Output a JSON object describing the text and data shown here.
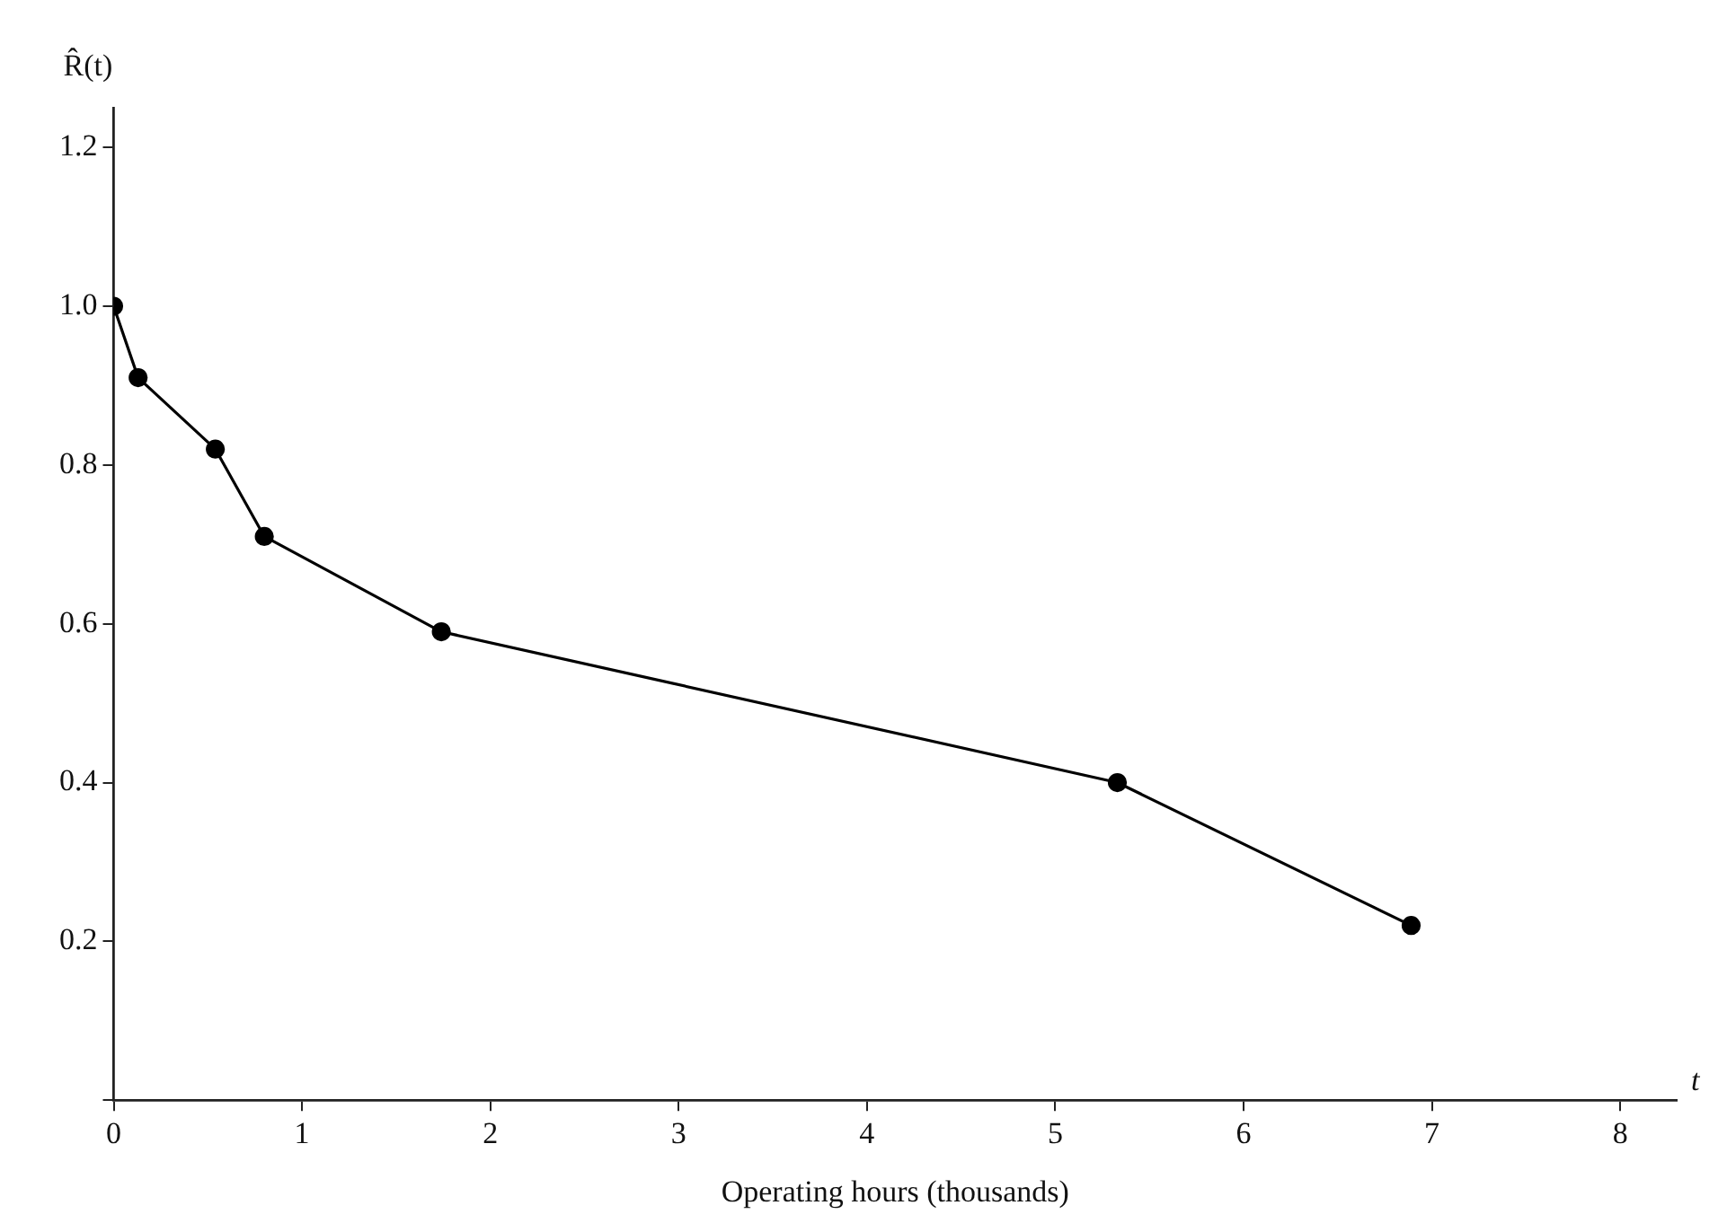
{
  "chart_data": {
    "type": "line",
    "xlabel": "Operating hours (thousands)",
    "ylabel": "R̂(t)",
    "annotations": [
      "t"
    ],
    "x": [
      0,
      0.13,
      0.54,
      0.8,
      1.74,
      5.33,
      6.89
    ],
    "series": [
      {
        "color": "#000000",
        "values": [
          1.0,
          0.91,
          0.82,
          0.71,
          0.59,
          0.4,
          0.22
        ]
      }
    ],
    "xlim": [
      0,
      8.3
    ],
    "xticks": [
      0,
      1,
      2,
      3,
      4,
      5,
      6,
      7,
      8
    ],
    "ylim": [
      0,
      1.25
    ],
    "yticks": [
      {
        "value": 0,
        "label": null
      },
      0.2,
      0.4,
      0.6,
      0.8,
      {
        "value": 1,
        "label": "1.0"
      },
      1.2
    ],
    "grid": false,
    "legend": false,
    "marker": "circle",
    "line_style": "solid"
  }
}
